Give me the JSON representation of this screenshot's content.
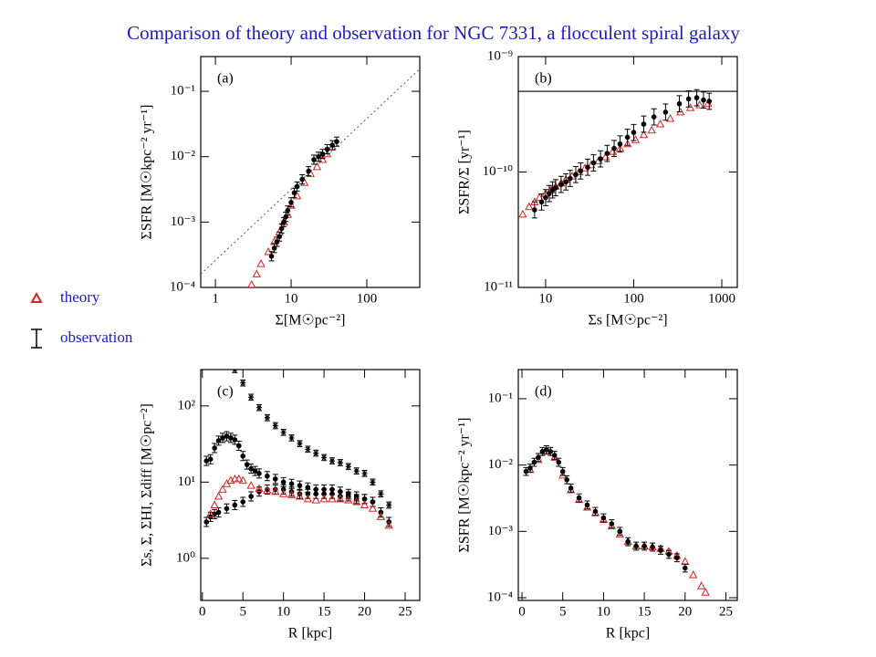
{
  "title": "Comparison of theory and observation for NGC 7331, a flocculent spiral galaxy",
  "legend": [
    {
      "label": "theory",
      "marker": "triangle",
      "color": "#e02020"
    },
    {
      "label": "observation",
      "marker": "errorbar",
      "color": "#000000"
    }
  ],
  "chart_data": [
    {
      "type": "scatter",
      "panel_label": "(a)",
      "xlabel": "Σ[M☉pc⁻²]",
      "ylabel": "ΣSFR [M☉kpc⁻² yr⁻¹]",
      "xscale": "log",
      "yscale": "log",
      "xlim": [
        0.64,
        500
      ],
      "ylim": [
        0.0001,
        0.34
      ],
      "xticks": [
        1,
        10,
        100
      ],
      "yticks": [
        {
          "value": 0.0001,
          "label": "10⁻⁴"
        },
        {
          "value": 0.001,
          "label": "10⁻³"
        },
        {
          "value": 0.01,
          "label": "10⁻²"
        },
        {
          "value": 0.1,
          "label": "10⁻¹"
        }
      ],
      "lines": [
        {
          "x": [
            0.64,
            500
          ],
          "values": [
            0.00016,
            0.22
          ],
          "style": "dotted"
        }
      ],
      "series": [
        {
          "marker": "triangle",
          "color": "#e02020",
          "x": [
            3,
            3.5,
            4,
            5,
            6,
            7,
            8,
            9,
            10,
            12,
            15,
            18,
            22,
            26,
            30,
            35
          ],
          "values": [
            0.00011,
            0.00016,
            0.00023,
            0.00035,
            0.0005,
            0.0007,
            0.001,
            0.0013,
            0.0018,
            0.0025,
            0.004,
            0.0055,
            0.007,
            0.009,
            0.011,
            0.014
          ]
        },
        {
          "marker": "circle",
          "color": "#000000",
          "error_dex": 0.07,
          "x": [
            5.5,
            6,
            6.5,
            7,
            7.5,
            8,
            8.5,
            9,
            10,
            11,
            12,
            14,
            17,
            20,
            23,
            26,
            30,
            35,
            40
          ],
          "values": [
            0.0003,
            0.0004,
            0.0005,
            0.0006,
            0.0008,
            0.001,
            0.0012,
            0.0015,
            0.002,
            0.0028,
            0.0035,
            0.0045,
            0.006,
            0.009,
            0.01,
            0.011,
            0.013,
            0.015,
            0.017
          ]
        }
      ]
    },
    {
      "type": "scatter",
      "panel_label": "(b)",
      "xlabel": "Σs [M☉pc⁻²]",
      "ylabel": "ΣSFR/Σ   [yr⁻¹]",
      "xscale": "log",
      "yscale": "log",
      "xlim": [
        4.9,
        1500
      ],
      "ylim": [
        1e-11,
        1e-09
      ],
      "xticks": [
        10,
        100,
        1000
      ],
      "yticks": [
        {
          "value": 1e-11,
          "label": "10⁻¹¹"
        },
        {
          "value": 1e-10,
          "label": "10⁻¹⁰"
        },
        {
          "value": 1e-09,
          "label": "10⁻⁹"
        }
      ],
      "hline": 5e-10,
      "series": [
        {
          "marker": "triangle",
          "color": "#e02020",
          "x": [
            5.5,
            6.5,
            7.5,
            8.5,
            10,
            11.5,
            13,
            15,
            17,
            20,
            24,
            28,
            33,
            40,
            48,
            58,
            70,
            85,
            105,
            130,
            160,
            200,
            260,
            340,
            440,
            560,
            700
          ],
          "values": [
            4.3e-11,
            5e-11,
            5.5e-11,
            6e-11,
            6.5e-11,
            7e-11,
            7.5e-11,
            8e-11,
            8.6e-11,
            9.2e-11,
            1e-10,
            1.08e-10,
            1.15e-10,
            1.25e-10,
            1.35e-10,
            1.5e-10,
            1.6e-10,
            1.75e-10,
            1.9e-10,
            2.1e-10,
            2.3e-10,
            2.6e-10,
            2.9e-10,
            3.3e-10,
            3.6e-10,
            3.8e-10,
            3.9e-10
          ]
        },
        {
          "marker": "circle",
          "color": "#000000",
          "error_dex": 0.07,
          "x": [
            7.5,
            9,
            10,
            11,
            12,
            13,
            15,
            17,
            19,
            22,
            25,
            30,
            35,
            42,
            50,
            60,
            70,
            85,
            100,
            130,
            170,
            230,
            330,
            420,
            520,
            620,
            720
          ],
          "values": [
            4.7e-11,
            5.5e-11,
            6e-11,
            6.5e-11,
            7e-11,
            7.3e-11,
            7.8e-11,
            8.2e-11,
            8.8e-11,
            9.5e-11,
            1.02e-10,
            1.1e-10,
            1.2e-10,
            1.3e-10,
            1.45e-10,
            1.6e-10,
            1.75e-10,
            2e-10,
            2.2e-10,
            2.6e-10,
            3e-10,
            3.3e-10,
            3.9e-10,
            4.3e-10,
            4.4e-10,
            4.2e-10,
            4.1e-10
          ]
        }
      ]
    },
    {
      "type": "scatter",
      "panel_label": "(c)",
      "xlabel": "R [kpc]",
      "ylabel": "Σs, Σ, ΣHI, Σdiff   [M☉pc⁻²]",
      "xscale": "linear",
      "yscale": "log",
      "xlim": [
        -0.2,
        26.8
      ],
      "ylim": [
        0.28,
        300
      ],
      "xticks": [
        0,
        5,
        10,
        15,
        20,
        25
      ],
      "yticks": [
        {
          "value": 1,
          "label": "10⁰"
        },
        {
          "value": 10,
          "label": "10¹"
        },
        {
          "value": 100,
          "label": "10²"
        }
      ],
      "series": [
        {
          "marker": "star",
          "color": "#000000",
          "error_dex": 0.04,
          "x": [
            4,
            5,
            6,
            7,
            8,
            9,
            10,
            11,
            12,
            13,
            14,
            15,
            16,
            17,
            18,
            19,
            20,
            21,
            22,
            23
          ],
          "values": [
            300,
            200,
            130,
            95,
            70,
            55,
            45,
            38,
            32,
            27,
            24,
            21,
            19,
            18,
            16,
            14,
            13,
            10,
            7,
            5
          ]
        },
        {
          "marker": "circle",
          "color": "#000000",
          "error_dex": 0.06,
          "x": [
            0.5,
            1,
            1.5,
            2,
            2.5,
            3,
            3.5,
            4,
            4.5,
            5,
            5.5,
            6,
            6.5,
            7,
            8,
            9,
            10,
            11,
            12,
            13,
            14,
            15,
            16,
            17,
            18,
            19,
            20,
            21,
            22,
            23
          ],
          "values": [
            19,
            20,
            28,
            35,
            38,
            40,
            38,
            36,
            30,
            22,
            17,
            15,
            14,
            13,
            12,
            11,
            10,
            9.5,
            9,
            8.5,
            8,
            8,
            8,
            7.5,
            7,
            6.5,
            6,
            5.5,
            4,
            3
          ]
        },
        {
          "marker": "circle",
          "color": "#000000",
          "error_dex": 0.06,
          "x": [
            0.5,
            1,
            1.5,
            2,
            3,
            4,
            5,
            6,
            7,
            8,
            9,
            10,
            11,
            12,
            13,
            14,
            15,
            16,
            17,
            18,
            19,
            20,
            21,
            22,
            23
          ],
          "values": [
            3,
            3.5,
            3.8,
            4,
            4.5,
            5,
            5.5,
            6.5,
            7.5,
            8,
            8,
            8,
            7.5,
            7,
            7,
            7,
            7,
            7,
            6.5,
            6.5,
            6,
            6,
            5.5,
            4,
            3
          ]
        },
        {
          "marker": "triangle",
          "color": "#e02020",
          "x": [
            1,
            1.5,
            2,
            2.5,
            3,
            3.5,
            4,
            4.5,
            5,
            6,
            7,
            8,
            9,
            10,
            11,
            12,
            13,
            14,
            15,
            16,
            17,
            18,
            19,
            20,
            21,
            22,
            23
          ],
          "values": [
            3.8,
            5,
            6.5,
            8,
            9.5,
            10.5,
            11,
            11,
            10.5,
            9,
            8.2,
            7.8,
            7.5,
            7,
            6.8,
            6.5,
            6,
            5.8,
            6,
            6,
            6,
            5.8,
            5.5,
            5,
            4.5,
            3.5,
            2.7
          ]
        }
      ]
    },
    {
      "type": "scatter",
      "panel_label": "(d)",
      "xlabel": "R [kpc]",
      "ylabel": "ΣSFR [M☉kpc⁻² yr⁻¹]",
      "xscale": "linear",
      "yscale": "log",
      "xlim": [
        -0.45,
        26.4
      ],
      "ylim": [
        9.1e-05,
        0.275
      ],
      "xticks": [
        0,
        5,
        10,
        15,
        20,
        25
      ],
      "yticks": [
        {
          "value": 0.0001,
          "label": "10⁻⁴"
        },
        {
          "value": 0.001,
          "label": "10⁻³"
        },
        {
          "value": 0.01,
          "label": "10⁻²"
        },
        {
          "value": 0.1,
          "label": "10⁻¹"
        }
      ],
      "series": [
        {
          "marker": "triangle",
          "color": "#e02020",
          "x": [
            1,
            2,
            3,
            4,
            5,
            6,
            7,
            8,
            9,
            10,
            11,
            12,
            13,
            14,
            15,
            16,
            17,
            18,
            19,
            20,
            21,
            22,
            22.5
          ],
          "values": [
            0.0085,
            0.012,
            0.016,
            0.013,
            0.007,
            0.0042,
            0.003,
            0.0023,
            0.0019,
            0.0015,
            0.0012,
            0.0009,
            0.0007,
            0.0006,
            0.0006,
            0.00058,
            0.00055,
            0.0005,
            0.00043,
            0.00035,
            0.00022,
            0.00015,
            0.00012
          ]
        },
        {
          "marker": "circle",
          "color": "#000000",
          "error_dex": 0.06,
          "x": [
            0.5,
            1,
            1.5,
            2,
            2.5,
            3,
            3.5,
            4,
            4.5,
            5,
            5.5,
            6,
            7,
            8,
            9,
            10,
            11,
            12,
            13,
            14,
            15,
            16,
            17,
            18,
            19,
            20
          ],
          "values": [
            0.008,
            0.009,
            0.011,
            0.013,
            0.016,
            0.017,
            0.016,
            0.014,
            0.011,
            0.008,
            0.006,
            0.0045,
            0.0032,
            0.0025,
            0.002,
            0.0016,
            0.0013,
            0.001,
            0.0007,
            0.0006,
            0.0006,
            0.00058,
            0.00052,
            0.00045,
            0.0004,
            0.00028
          ]
        }
      ]
    }
  ]
}
